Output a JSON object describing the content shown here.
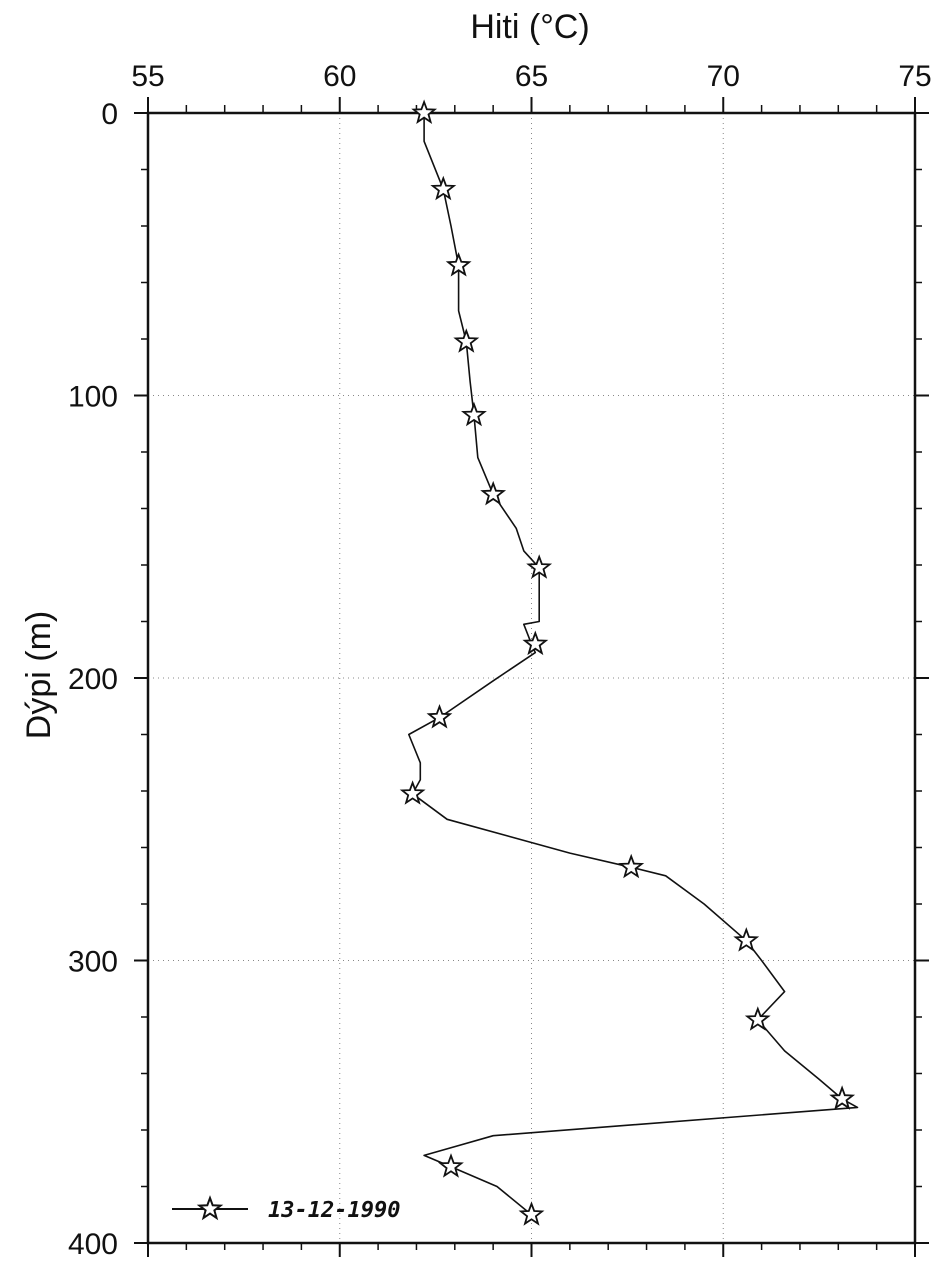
{
  "chart_data": {
    "type": "line",
    "xlabel": "Hiti (°C)",
    "ylabel": "Dýpi (m)",
    "xlim": [
      55,
      75
    ],
    "ylim": [
      0,
      400
    ],
    "y_inverted": true,
    "x_axis_position": "top",
    "x_ticks": [
      "55",
      "60",
      "65",
      "70",
      "75"
    ],
    "y_ticks": [
      "0",
      "100",
      "200",
      "300",
      "400"
    ],
    "grid": true,
    "legend_position": "bottom-left",
    "series": [
      {
        "name": "13-12-1990",
        "marker": "star",
        "line_points": [
          [
            62.2,
            0
          ],
          [
            62.2,
            10
          ],
          [
            62.7,
            27
          ],
          [
            62.9,
            40
          ],
          [
            63.1,
            54
          ],
          [
            63.1,
            70
          ],
          [
            63.3,
            81
          ],
          [
            63.4,
            95
          ],
          [
            63.5,
            107
          ],
          [
            63.6,
            122
          ],
          [
            64.0,
            135
          ],
          [
            64.6,
            147
          ],
          [
            64.8,
            155
          ],
          [
            65.2,
            161
          ],
          [
            65.2,
            180
          ],
          [
            64.8,
            181
          ],
          [
            65.0,
            188
          ],
          [
            65.1,
            191
          ],
          [
            64.0,
            201
          ],
          [
            62.6,
            214
          ],
          [
            61.8,
            220
          ],
          [
            62.1,
            230
          ],
          [
            62.1,
            236
          ],
          [
            61.9,
            241
          ],
          [
            62.8,
            250
          ],
          [
            66.0,
            262
          ],
          [
            67.6,
            267
          ],
          [
            68.5,
            270
          ],
          [
            69.5,
            280
          ],
          [
            70.6,
            293
          ],
          [
            71.0,
            300
          ],
          [
            71.6,
            311
          ],
          [
            70.9,
            321
          ],
          [
            71.6,
            332
          ],
          [
            72.5,
            342
          ],
          [
            73.1,
            349
          ],
          [
            73.5,
            352
          ],
          [
            64.0,
            362
          ],
          [
            62.2,
            369
          ],
          [
            62.9,
            373
          ],
          [
            64.1,
            380
          ],
          [
            65.0,
            390
          ]
        ],
        "marker_points": [
          [
            62.2,
            0
          ],
          [
            62.7,
            27
          ],
          [
            63.1,
            54
          ],
          [
            63.3,
            81
          ],
          [
            63.5,
            107
          ],
          [
            64.0,
            135
          ],
          [
            65.2,
            161
          ],
          [
            65.1,
            188
          ],
          [
            62.6,
            214
          ],
          [
            61.9,
            241
          ],
          [
            67.6,
            267
          ],
          [
            70.6,
            293
          ],
          [
            70.9,
            321
          ],
          [
            73.1,
            349
          ],
          [
            62.9,
            373
          ],
          [
            65.0,
            390
          ]
        ]
      }
    ]
  }
}
